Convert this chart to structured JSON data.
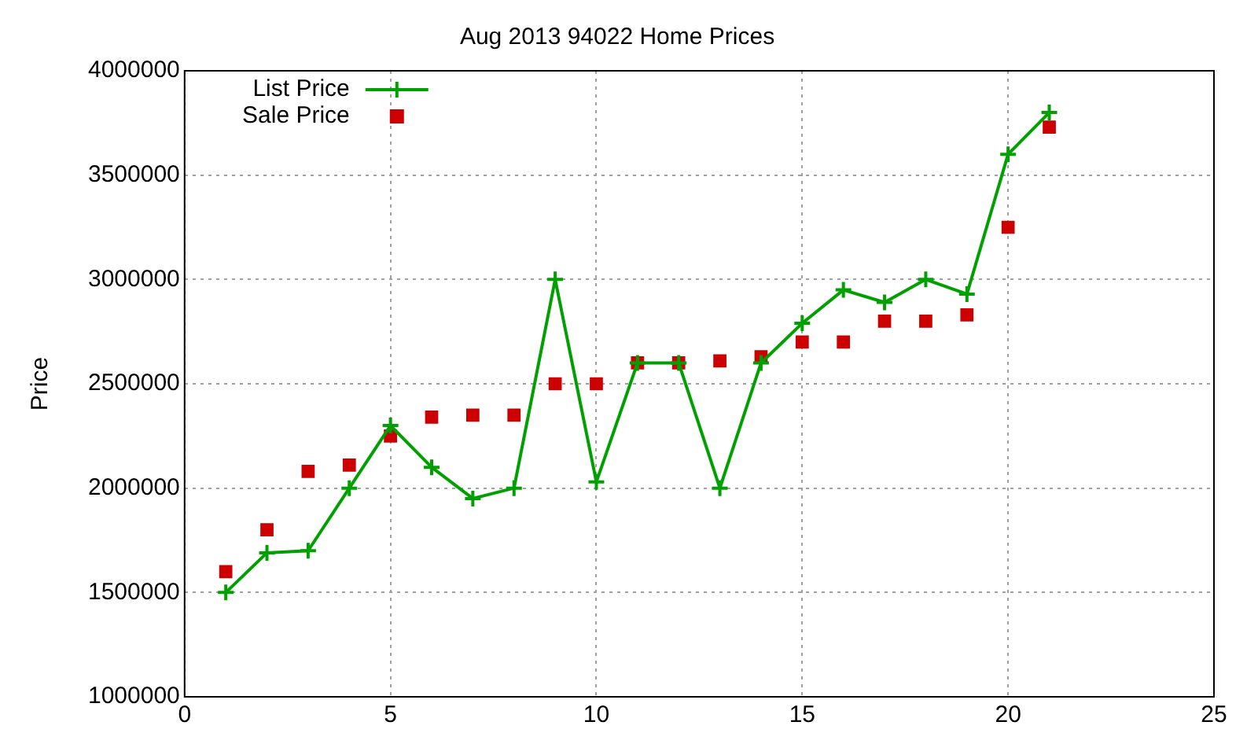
{
  "chart_data": {
    "type": "line",
    "title": "Aug 2013 94022 Home Prices",
    "ylabel": "Price",
    "x": [
      1,
      2,
      3,
      4,
      5,
      6,
      7,
      8,
      9,
      10,
      11,
      12,
      13,
      14,
      15,
      16,
      17,
      18,
      19,
      20,
      21
    ],
    "series": [
      {
        "name": "List Price",
        "marker": "cross",
        "color": "#00a000",
        "values": [
          1500000,
          1690000,
          1700000,
          2000000,
          2300000,
          2100000,
          1950000,
          2000000,
          3000000,
          2030000,
          2600000,
          2600000,
          2000000,
          2600000,
          2790000,
          2950000,
          2890000,
          3000000,
          2930000,
          3600000,
          3800000
        ]
      },
      {
        "name": "Sale Price",
        "type": "scatter",
        "marker": "square",
        "color": "#cc0000",
        "values": [
          1600000,
          1800000,
          2080000,
          2110000,
          2250000,
          2340000,
          2350000,
          2350000,
          2500000,
          2500000,
          2600000,
          2600000,
          2610000,
          2630000,
          2700000,
          2700000,
          2800000,
          2800000,
          2830000,
          3250000,
          3730000
        ]
      }
    ],
    "xlim": [
      0,
      25
    ],
    "xticks": [
      0,
      5,
      10,
      15,
      20,
      25
    ],
    "ylim": [
      1000000,
      4000000
    ],
    "yticks": [
      1000000,
      1500000,
      2000000,
      2500000,
      3000000,
      3500000,
      4000000
    ],
    "grid": true,
    "legend": "top left"
  }
}
